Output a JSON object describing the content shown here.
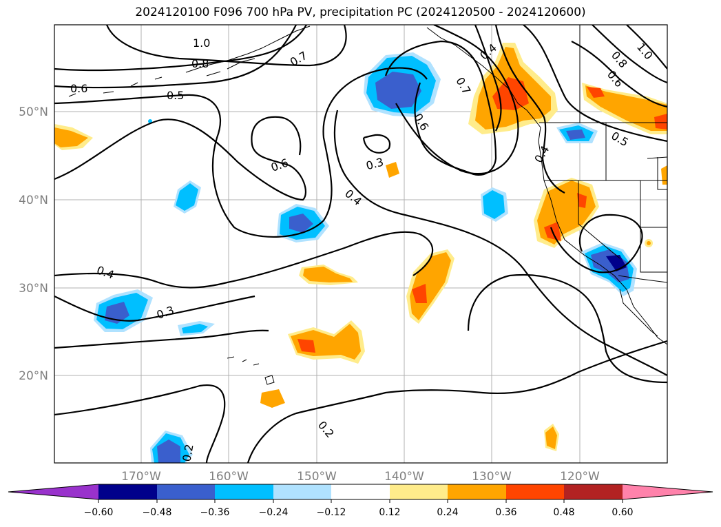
{
  "title": "2024120100 F096 700 hPa PV, precipitation PC (2024120500 - 2024120600)",
  "lat_labels": [
    "50°N",
    "40°N",
    "30°N",
    "20°N"
  ],
  "lon_labels": [
    "170°W",
    "160°W",
    "150°W",
    "140°W",
    "130°W",
    "120°W"
  ],
  "contour_labels": [
    "1.0",
    "0.8",
    "0.7",
    "0.6",
    "0.5",
    "0.6",
    "0.3",
    "0.4",
    "0.4",
    "0.3",
    "0.2",
    "0.4",
    "0.7",
    "0.6",
    "0.8",
    "0.6",
    "0.5",
    "0.4",
    "1.0",
    "0.2"
  ],
  "colorbar": {
    "ticks": [
      "−0.60",
      "−0.48",
      "−0.36",
      "−0.24",
      "−0.12",
      "0.12",
      "0.24",
      "0.36",
      "0.48",
      "0.60"
    ],
    "colors": [
      "#9932cc",
      "#00008b",
      "#3a5fcd",
      "#00bfff",
      "#b0e2ff",
      "#ffffff",
      "#ffec8b",
      "#ffa500",
      "#ff4500",
      "#b22222",
      "#ff82ab"
    ]
  }
}
